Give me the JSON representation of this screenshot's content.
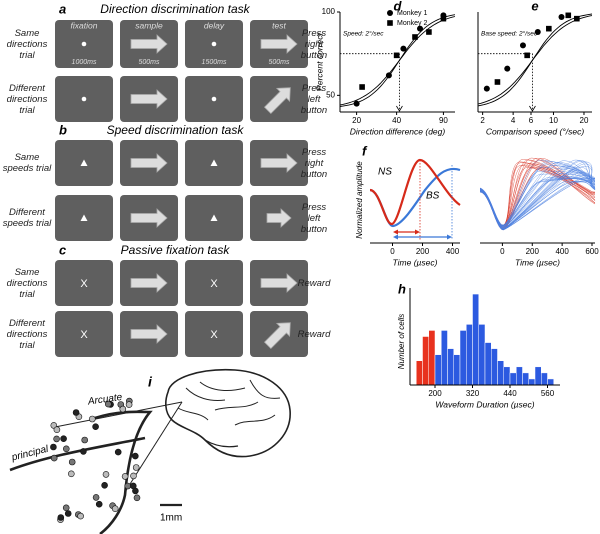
{
  "panels": {
    "a": {
      "letter": "a",
      "title": "Direction discrimination task",
      "columns": [
        "fixation",
        "sample",
        "delay",
        "test"
      ],
      "durations": [
        "1000ms",
        "500ms",
        "1500ms",
        "500ms"
      ],
      "rows": [
        {
          "label": "Same directions trial",
          "response": "Press right button"
        },
        {
          "label": "Different directions trial",
          "response": "Press left button"
        }
      ]
    },
    "b": {
      "letter": "b",
      "title": "Speed discrimination task",
      "rows": [
        {
          "label": "Same speeds trial",
          "response": "Press right button"
        },
        {
          "label": "Different speeds trial",
          "response": "Press left button"
        }
      ]
    },
    "c": {
      "letter": "c",
      "title": "Passive fixation task",
      "fixation_symbol": "X",
      "rows": [
        {
          "label": "Same directions trial",
          "response": "Reward"
        },
        {
          "label": "Different directions trial",
          "response": "Reward"
        }
      ]
    },
    "d": {
      "letter": "d",
      "type": "scatter",
      "note": "Speed: 2°/sec",
      "xlabel": "Direction difference (deg)",
      "ylabel": "Percent correct",
      "xscale": "log",
      "xlim": [
        15,
        110
      ],
      "ylim": [
        40,
        100
      ],
      "xticks": [
        20,
        40,
        90
      ],
      "yticks": [
        50,
        100
      ],
      "criterion": 75,
      "threshold": 42,
      "series": [
        {
          "name": "Monkey 1",
          "marker": "circle",
          "x": [
            20,
            35,
            45,
            60,
            90
          ],
          "y": [
            45,
            62,
            78,
            90,
            98
          ]
        },
        {
          "name": "Monkey 2",
          "marker": "square",
          "x": [
            22,
            40,
            55,
            70,
            90
          ],
          "y": [
            55,
            74,
            85,
            88,
            96
          ]
        }
      ]
    },
    "e": {
      "letter": "e",
      "type": "scatter",
      "note": "Base speed: 2°/sec",
      "xlabel": "Comparison speed (°/sec)",
      "xscale": "log",
      "xlim": [
        1.8,
        24
      ],
      "ylim": [
        40,
        100
      ],
      "xticks": [
        2,
        4,
        6,
        10,
        20
      ],
      "criterion": 75,
      "threshold": 6.2,
      "series": [
        {
          "name": "Monkey 1",
          "marker": "circle",
          "x": [
            2.2,
            3.5,
            5,
            7,
            12
          ],
          "y": [
            54,
            66,
            80,
            88,
            97
          ]
        },
        {
          "name": "Monkey 2",
          "marker": "square",
          "x": [
            2.8,
            5.5,
            9,
            14,
            17
          ],
          "y": [
            58,
            74,
            90,
            98,
            96
          ]
        }
      ]
    },
    "f": {
      "letter": "f",
      "ylabel": "Normalized amplitude",
      "left": {
        "xlabel": "Time (µsec)",
        "xticks": [
          0,
          200,
          400
        ],
        "xlim": [
          -150,
          450
        ],
        "labels": [
          "NS",
          "BS"
        ]
      },
      "right": {
        "xlabel": "Time (µsec)",
        "xticks": [
          0,
          200,
          400,
          600
        ],
        "xlim": [
          -150,
          620
        ]
      }
    },
    "h": {
      "letter": "h",
      "type": "histogram",
      "xlabel": "Waveform  Duration (µsec)",
      "ylabel": "Number of cells",
      "xlim": [
        120,
        600
      ],
      "ylim": [
        0,
        16
      ],
      "xticks": [
        200,
        320,
        440,
        560
      ],
      "series": [
        {
          "name": "NS",
          "color": "#e8321e",
          "bins": [
            140,
            160,
            180,
            200
          ],
          "counts": [
            4,
            8,
            9
          ]
        },
        {
          "name": "BS",
          "color": "#2c5ae0",
          "bins": [
            200,
            220,
            240,
            260,
            280,
            300,
            320,
            340,
            360,
            380,
            400,
            420,
            440,
            460,
            480,
            500,
            520,
            540,
            560,
            580
          ],
          "counts": [
            5,
            9,
            6,
            5,
            9,
            10,
            15,
            10,
            7,
            6,
            4,
            3,
            2,
            3,
            2,
            1,
            3,
            2,
            1
          ]
        }
      ]
    },
    "i": {
      "letter": "i",
      "labels": [
        "Arcuate",
        "principal"
      ],
      "scale_bar": "1mm"
    }
  }
}
